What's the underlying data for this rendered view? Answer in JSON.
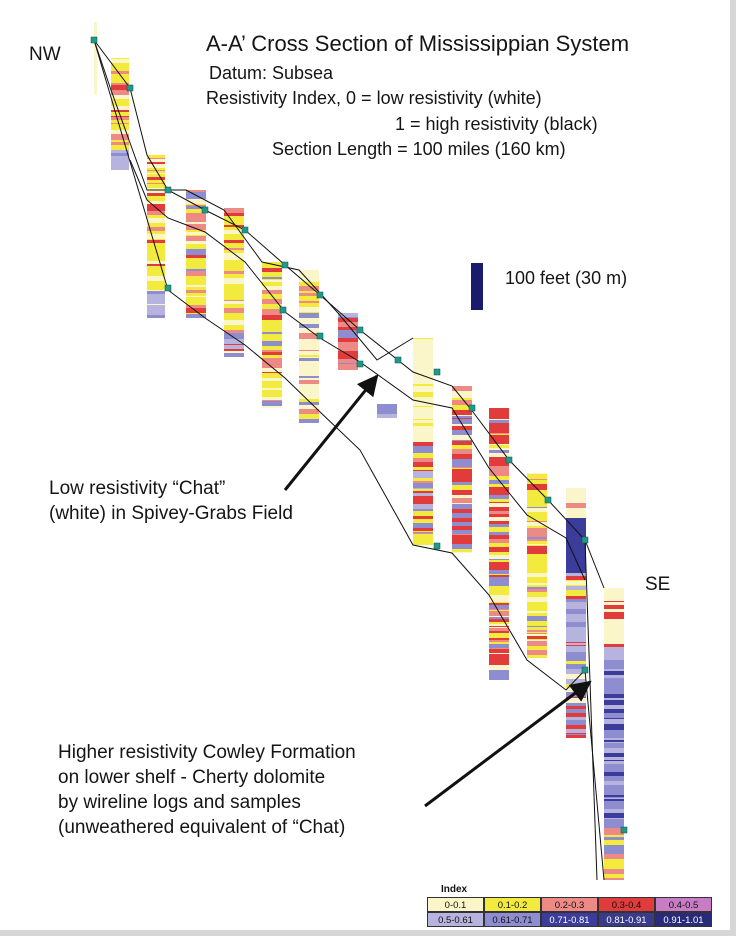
{
  "title": "A-A’ Cross Section of Mississippian System",
  "subtitle_lines": [
    "Datum: Subsea",
    "Resistivity Index, 0 = low resistivity (white)",
    "1 = high resistivity (black)",
    "Section Length = 100 miles (160 km)"
  ],
  "labels": {
    "nw": "NW",
    "se": "SE"
  },
  "scale_label": "100 feet (30 m)",
  "annotations": {
    "chat": [
      "Low resistivity “Chat”",
      "(white) in Spivey-Grabs Field"
    ],
    "cowley": [
      "Higher resistivity Cowley Formation",
      "on lower shelf - Cherty dolomite",
      "by wireline logs and samples",
      "(unweathered equivalent of “Chat)"
    ]
  },
  "legend": {
    "title": "Index",
    "row1": [
      {
        "label": "0-0.1",
        "color": "#fbf6c9"
      },
      {
        "label": "0.1-0.2",
        "color": "#f2ea3c"
      },
      {
        "label": "0.2-0.3",
        "color": "#ee8a86"
      },
      {
        "label": "0.3-0.4",
        "color": "#e23b3b"
      },
      {
        "label": "0.4-0.5",
        "color": "#c77cc3"
      }
    ],
    "row2": [
      {
        "label": "0.5-0.61",
        "color": "#b6b3df"
      },
      {
        "label": "0.61-0.71",
        "color": "#8d8dd0"
      },
      {
        "label": "0.71-0.81",
        "color": "#3c3c9a"
      },
      {
        "label": "0.81-0.91",
        "color": "#3a3a8a"
      },
      {
        "label": "0.91-1.01",
        "color": "#2a2a7a"
      }
    ]
  },
  "colors": {
    "marker": "#1f9a8a",
    "line": "#111111",
    "scale_bar": "#1b1b6e"
  }
}
